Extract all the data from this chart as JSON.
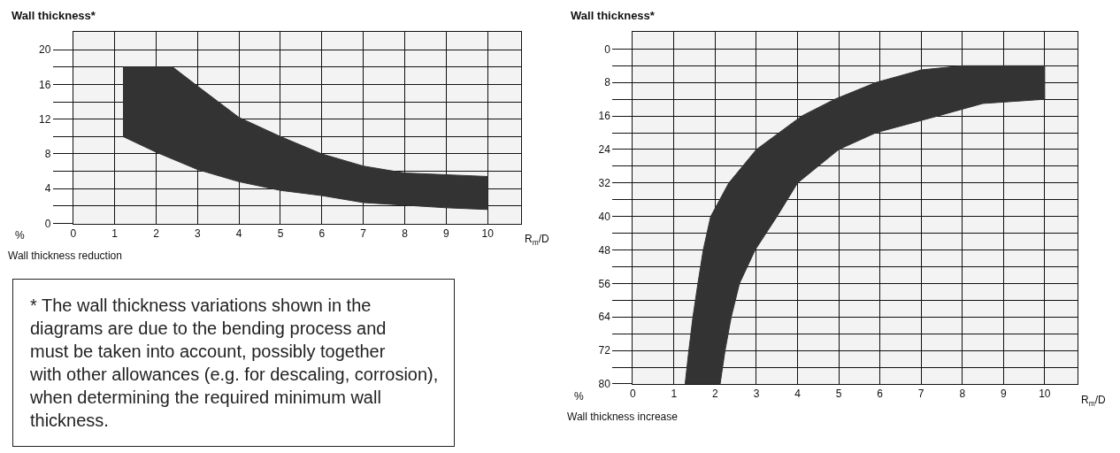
{
  "chart_data": [
    {
      "type": "area",
      "title": "Wall thickness*",
      "xlabel": "R$_{m}$/D",
      "ylabel": "%",
      "annotations": [
        "Wall thickness reduction",
        "* The wall thickness variations shown in the\ndiagrams are due to the bending process and\nmust be taken into account, possibly together\nwith other allowances (e.g. for descaling, corrosion),\nwhen determining the required minimum wall\nthickness."
      ],
      "xlim": [
        0,
        10.8
      ],
      "ylim": [
        0,
        22
      ],
      "xticks": [
        0,
        1,
        2,
        3,
        4,
        5,
        6,
        7,
        8,
        9,
        10
      ],
      "yticks": [
        0,
        {
          "value": 2,
          "label": null
        },
        4,
        {
          "value": 6,
          "label": null
        },
        8,
        {
          "value": 10,
          "label": null
        },
        12,
        {
          "value": 14,
          "label": null
        },
        16,
        {
          "value": 18,
          "label": null
        },
        20
      ],
      "grid": true,
      "series": [
        {
          "color": "#333333",
          "x": [
            1.2,
            2.4,
            3,
            4,
            5,
            6,
            7,
            8,
            9,
            10,
            10,
            9,
            8,
            7,
            6,
            5,
            4,
            3,
            2,
            1.2
          ],
          "values": [
            18,
            18,
            15.8,
            12.2,
            10,
            8,
            6.6,
            5.8,
            5.6,
            5.4,
            1.6,
            1.8,
            2.1,
            2.4,
            3.2,
            3.8,
            4.8,
            6.2,
            8.2,
            10
          ]
        }
      ]
    },
    {
      "type": "area",
      "title": "Wall thickness*",
      "xlabel": "R$_{m}$/D",
      "ylabel": "%",
      "annotations": [
        "Wall thickness increase"
      ],
      "xlim": [
        0,
        10.8
      ],
      "ylim": [
        80,
        -4
      ],
      "xticks": [
        0,
        1,
        2,
        3,
        4,
        5,
        6,
        7,
        8,
        9,
        10
      ],
      "yticks": [
        0,
        {
          "value": 4,
          "label": null
        },
        8,
        {
          "value": 12,
          "label": null
        },
        16,
        {
          "value": 20,
          "label": null
        },
        24,
        {
          "value": 28,
          "label": null
        },
        32,
        {
          "value": 36,
          "label": null
        },
        40,
        {
          "value": 44,
          "label": null
        },
        48,
        {
          "value": 52,
          "label": null
        },
        56,
        {
          "value": 60,
          "label": null
        },
        64,
        {
          "value": 68,
          "label": null
        },
        72,
        {
          "value": 76,
          "label": null
        },
        80
      ],
      "grid": true,
      "series": [
        {
          "color": "#333333",
          "x": [
            1.27,
            1.36,
            1.46,
            1.58,
            1.71,
            1.89,
            2.33,
            3.0,
            4.1,
            4.9,
            5.9,
            7,
            8,
            9,
            10,
            10,
            8.5,
            7.4,
            5.9,
            5.0,
            4.0,
            3.5,
            2.97,
            2.59,
            2.39,
            2.24,
            2.12
          ],
          "values": [
            80,
            72,
            64,
            56,
            48,
            40,
            32,
            24,
            16,
            12,
            8,
            5,
            4,
            4,
            4,
            12,
            13,
            16,
            20,
            24,
            32,
            40,
            48,
            56,
            64,
            72,
            80
          ]
        }
      ]
    }
  ]
}
